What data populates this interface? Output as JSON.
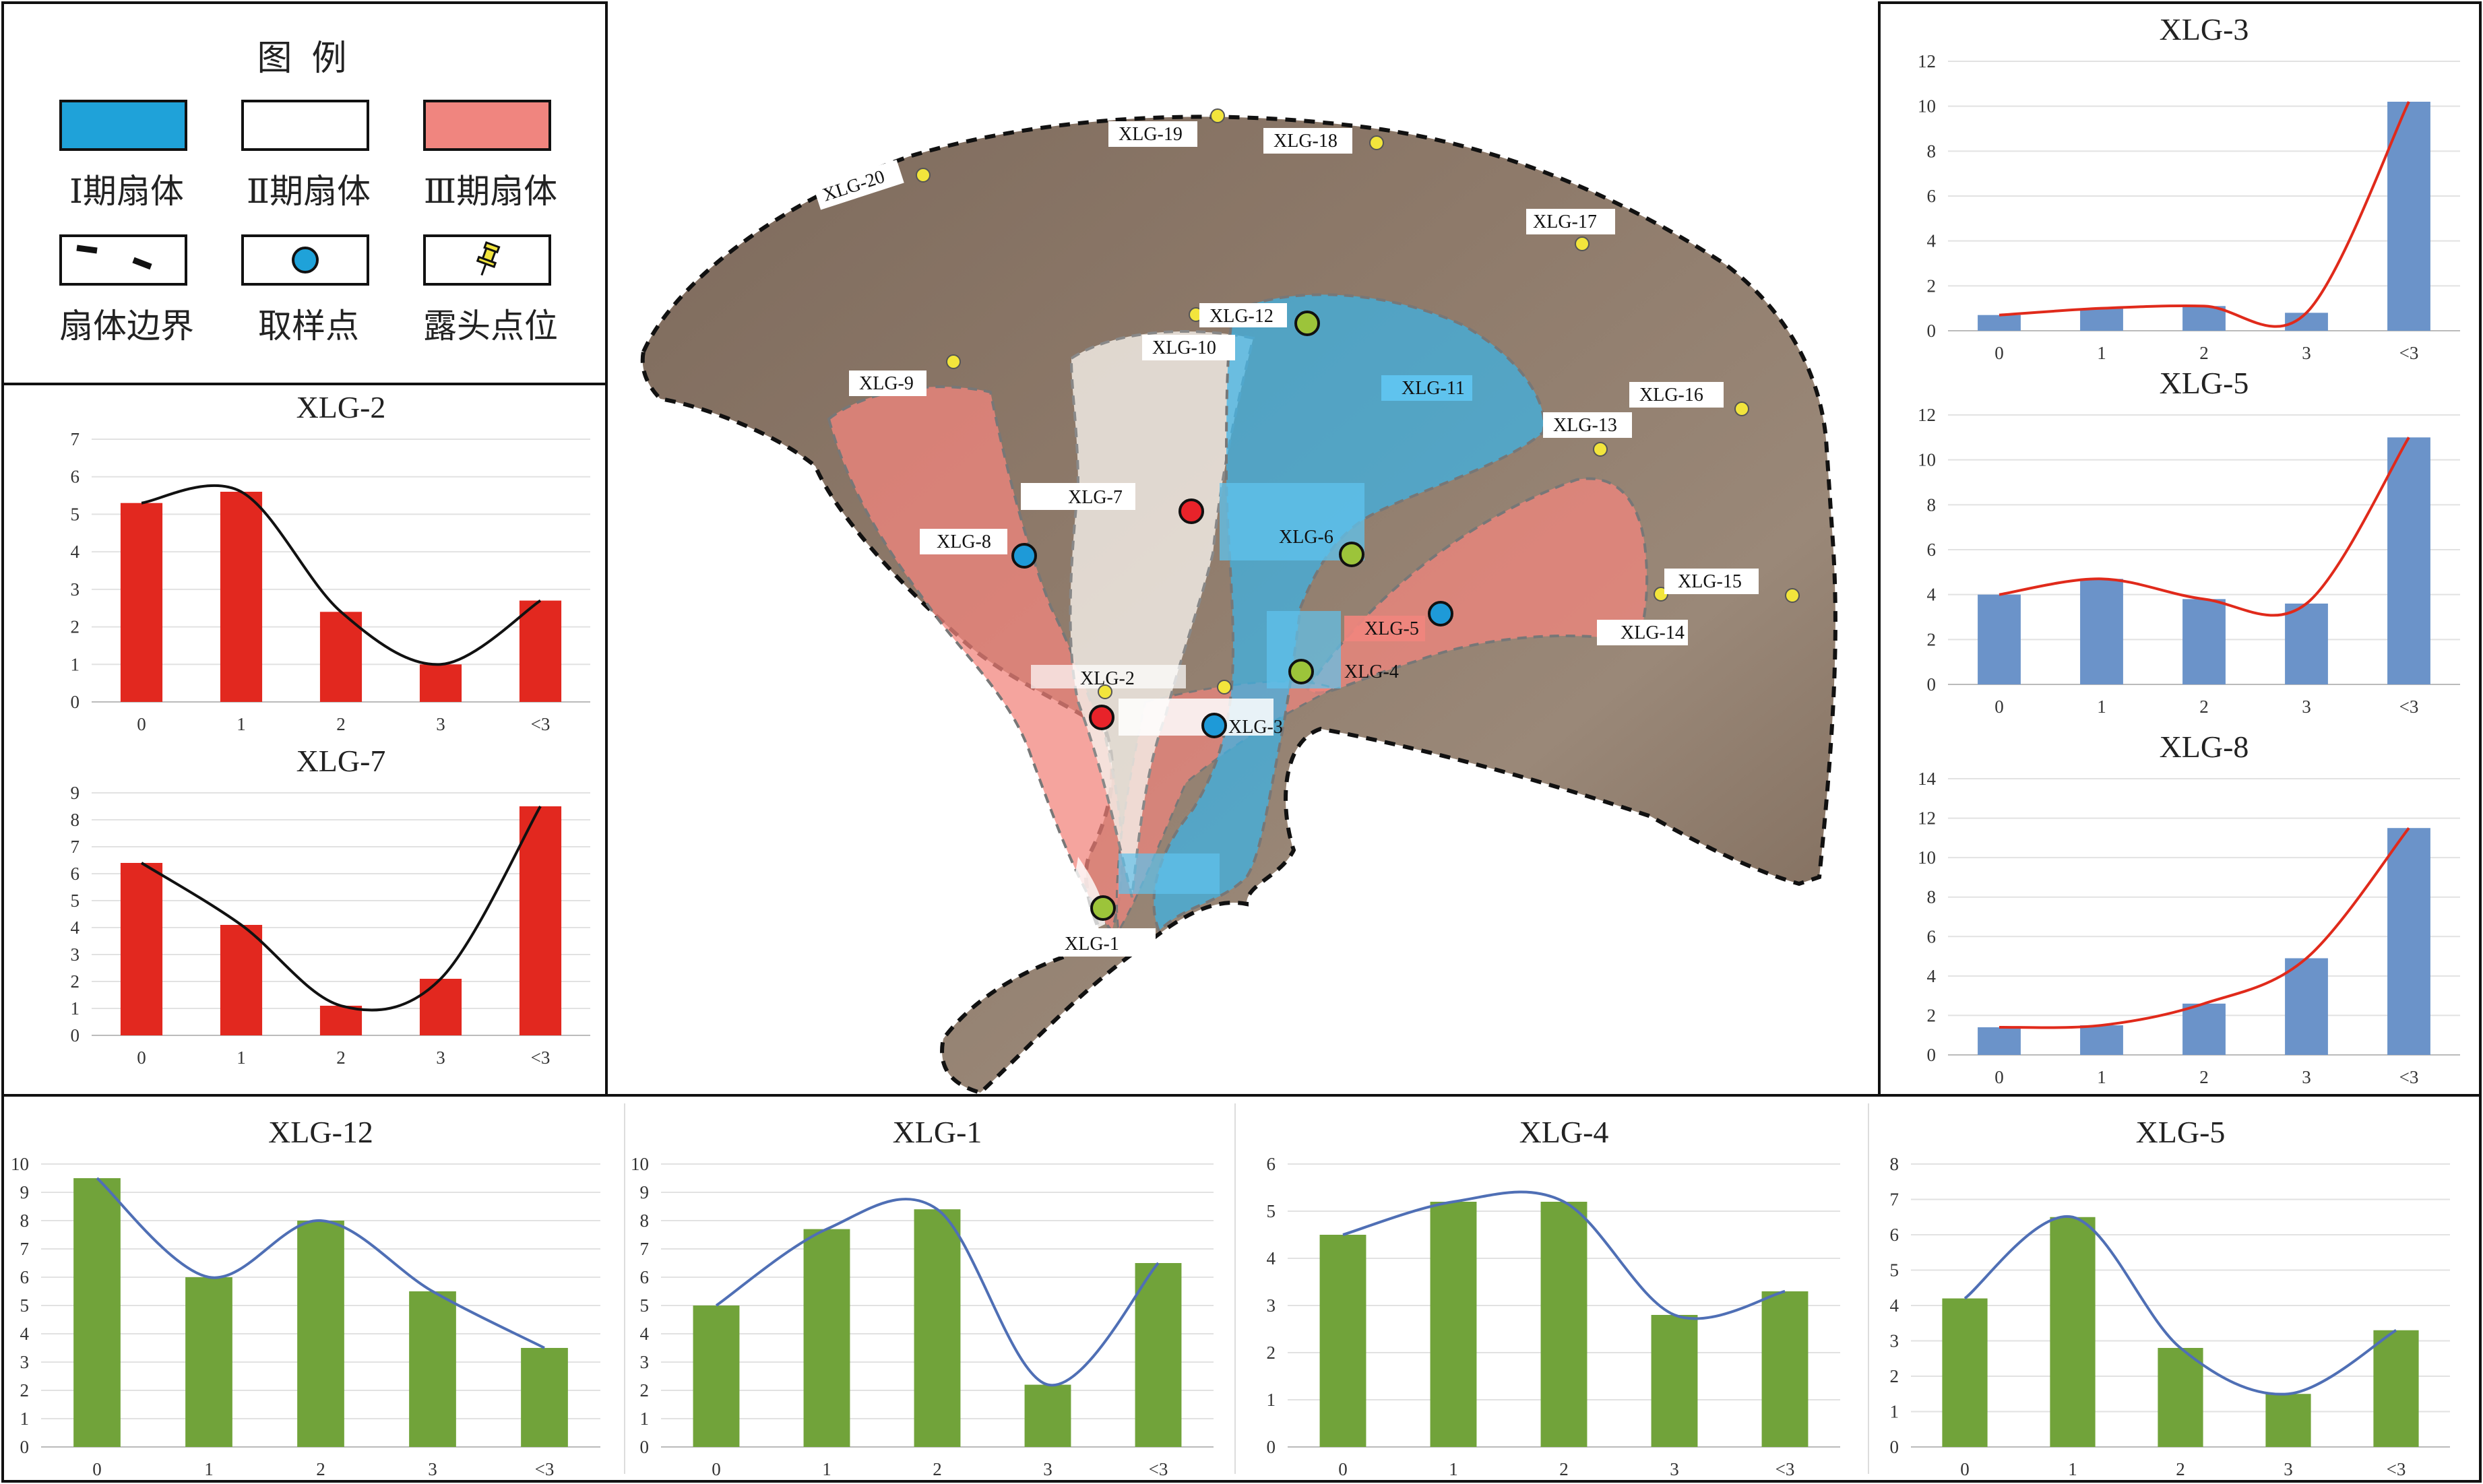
{
  "legend": {
    "title": "图 例",
    "items": [
      {
        "label": "Ⅰ期扇体",
        "kind": "fill",
        "color": "#1fa2d9"
      },
      {
        "label": "Ⅱ期扇体",
        "kind": "fill",
        "color": "#ffffff"
      },
      {
        "label": "Ⅲ期扇体",
        "kind": "fill",
        "color": "#f0857f"
      },
      {
        "label": "扇体边界",
        "kind": "boundary-dash-icon"
      },
      {
        "label": "取样点",
        "kind": "sample-point-icon",
        "color": "#1fa2d9"
      },
      {
        "label": "露头点位",
        "kind": "pushpin-icon",
        "color": "#f2e53c"
      }
    ]
  },
  "map": {
    "outcrop_labels": [
      "XLG-20",
      "XLG-19",
      "XLG-18",
      "XLG-17",
      "XLG-16",
      "XLG-13",
      "XLG-15",
      "XLG-14",
      "XLG-9",
      "XLG-10",
      "XLG-12",
      "XLG-11"
    ],
    "sample_labels": [
      "XLG-7",
      "XLG-8",
      "XLG-6",
      "XLG-5",
      "XLG-4",
      "XLG-2",
      "XLG-3",
      "XLG-1"
    ],
    "colors": {
      "phase1": "#3bb3e6",
      "phase2": "#f5f0ea",
      "phase3": "#f1857d",
      "terrain": "#8a7565",
      "sample_red": "#e8232a",
      "sample_blue": "#1e9ad8",
      "sample_green": "#9cc43a"
    }
  },
  "chart_data": [
    {
      "id": "XLG-2",
      "type": "bar",
      "title": "XLG-2",
      "categories": [
        "0",
        "1",
        "2",
        "3",
        "<3"
      ],
      "values": [
        5.3,
        5.6,
        2.4,
        1.0,
        2.7
      ],
      "ylim": [
        0,
        7
      ],
      "yticks": [
        "0",
        "1",
        "2",
        "3",
        "4",
        "5",
        "6",
        "7"
      ],
      "bar_color": "#e2281f",
      "curve_color": "#111111"
    },
    {
      "id": "XLG-7",
      "type": "bar",
      "title": "XLG-7",
      "categories": [
        "0",
        "1",
        "2",
        "3",
        "<3"
      ],
      "values": [
        6.4,
        4.1,
        1.1,
        2.1,
        8.5
      ],
      "ylim": [
        0,
        9
      ],
      "yticks": [
        "0",
        "1",
        "2",
        "3",
        "4",
        "5",
        "6",
        "7",
        "8",
        "9"
      ],
      "bar_color": "#e2281f",
      "curve_color": "#111111"
    },
    {
      "id": "XLG-3",
      "type": "bar",
      "title": "XLG-3",
      "categories": [
        "0",
        "1",
        "2",
        "3",
        "<3"
      ],
      "values": [
        0.7,
        1.0,
        1.1,
        0.8,
        10.2
      ],
      "ylim": [
        0,
        12
      ],
      "yticks": [
        "0",
        "2",
        "4",
        "6",
        "8",
        "10",
        "12"
      ],
      "bar_color": "#6b93c9",
      "curve_color": "#e02a1b"
    },
    {
      "id": "XLG-5a",
      "type": "bar",
      "title": "XLG-5",
      "categories": [
        "0",
        "1",
        "2",
        "3",
        "<3"
      ],
      "values": [
        4.0,
        4.7,
        3.8,
        3.6,
        11.0
      ],
      "ylim": [
        0,
        12
      ],
      "yticks": [
        "0",
        "2",
        "4",
        "6",
        "8",
        "10",
        "12"
      ],
      "bar_color": "#6b93c9",
      "curve_color": "#e02a1b"
    },
    {
      "id": "XLG-8",
      "type": "bar",
      "title": "XLG-8",
      "categories": [
        "0",
        "1",
        "2",
        "3",
        "<3"
      ],
      "values": [
        1.4,
        1.5,
        2.6,
        4.9,
        11.5
      ],
      "ylim": [
        0,
        14
      ],
      "yticks": [
        "0",
        "2",
        "4",
        "6",
        "8",
        "10",
        "12",
        "14"
      ],
      "bar_color": "#6b93c9",
      "curve_color": "#e02a1b"
    },
    {
      "id": "XLG-12",
      "type": "bar",
      "title": "XLG-12",
      "categories": [
        "0",
        "1",
        "2",
        "3",
        "<3"
      ],
      "values": [
        9.5,
        6.0,
        8.0,
        5.5,
        3.5
      ],
      "ylim": [
        0,
        10
      ],
      "yticks": [
        "0",
        "1",
        "2",
        "3",
        "4",
        "5",
        "6",
        "7",
        "8",
        "9",
        "10"
      ],
      "bar_color": "#71a33a",
      "curve_color": "#4f6fb5"
    },
    {
      "id": "XLG-1",
      "type": "bar",
      "title": "XLG-1",
      "categories": [
        "0",
        "1",
        "2",
        "3",
        "<3"
      ],
      "values": [
        5.0,
        7.7,
        8.4,
        2.2,
        6.5
      ],
      "ylim": [
        0,
        10
      ],
      "yticks": [
        "0",
        "1",
        "2",
        "3",
        "4",
        "5",
        "6",
        "7",
        "8",
        "9",
        "10"
      ],
      "bar_color": "#71a33a",
      "curve_color": "#4f6fb5"
    },
    {
      "id": "XLG-4",
      "type": "bar",
      "title": "XLG-4",
      "categories": [
        "0",
        "1",
        "2",
        "3",
        "<3"
      ],
      "values": [
        4.5,
        5.2,
        5.2,
        2.8,
        3.3
      ],
      "ylim": [
        0,
        6
      ],
      "yticks": [
        "0",
        "1",
        "2",
        "3",
        "4",
        "5",
        "6"
      ],
      "bar_color": "#71a33a",
      "curve_color": "#4f6fb5"
    },
    {
      "id": "XLG-5b",
      "type": "bar",
      "title": "XLG-5",
      "categories": [
        "0",
        "1",
        "2",
        "3",
        "<3"
      ],
      "values": [
        4.2,
        6.5,
        2.8,
        1.5,
        3.3
      ],
      "ylim": [
        0,
        8
      ],
      "yticks": [
        "0",
        "1",
        "2",
        "3",
        "4",
        "5",
        "6",
        "7",
        "8"
      ],
      "bar_color": "#71a33a",
      "curve_color": "#4f6fb5"
    }
  ]
}
